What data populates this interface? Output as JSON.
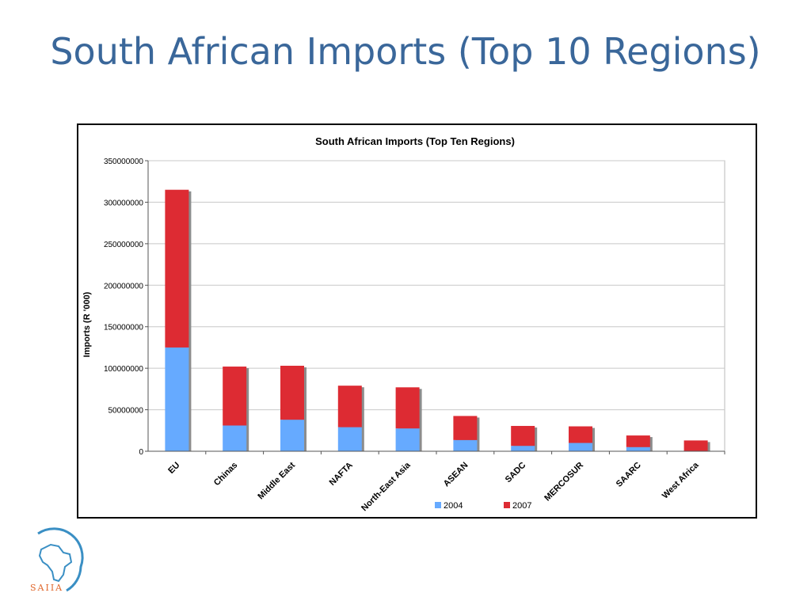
{
  "slide": {
    "title": "South African Imports (Top 10 Regions)",
    "logo_text": "SAIIA",
    "title_color": "#3a679a"
  },
  "chart_data": {
    "type": "bar",
    "stacked": true,
    "title": "South African Imports (Top Ten Regions)",
    "xlabel": "",
    "ylabel": "Imports (R '000)",
    "ylim": [
      0,
      350000000
    ],
    "yticks": [
      0,
      50000000,
      100000000,
      150000000,
      200000000,
      250000000,
      300000000,
      350000000
    ],
    "ytick_labels": [
      "0",
      "50000000",
      "100000000",
      "150000000",
      "200000000",
      "250000000",
      "300000000",
      "350000000"
    ],
    "grid": true,
    "legend_position": "bottom",
    "categories": [
      "EU",
      "Chinas",
      "Middle East",
      "NAFTA",
      "North-East Asia",
      "ASEAN",
      "SADC",
      "MERCOSUR",
      "SAARC",
      "West Africa"
    ],
    "series": [
      {
        "name": "2004",
        "color": "#66aaff",
        "values": [
          125000000,
          31000000,
          38000000,
          29000000,
          27500000,
          13500000,
          6500000,
          10000000,
          5000000,
          0
        ]
      },
      {
        "name": "2007",
        "color": "#dd2b33",
        "values": [
          190000000,
          71000000,
          65000000,
          50000000,
          49500000,
          29000000,
          24000000,
          20000000,
          14000000,
          13000000
        ]
      }
    ]
  }
}
